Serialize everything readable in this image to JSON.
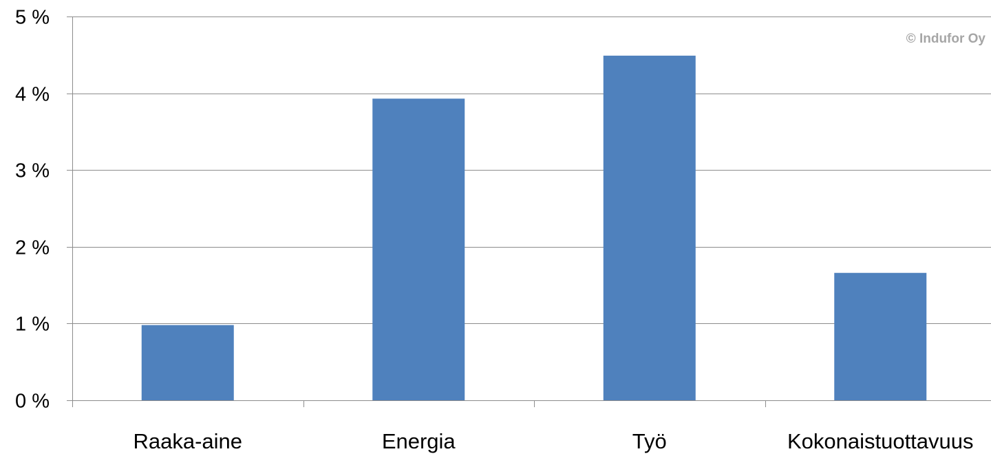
{
  "watermark": "© Indufor Oy",
  "chart_data": {
    "type": "bar",
    "categories": [
      "Raaka-aine",
      "Energia",
      "Työ",
      "Kokonaistuottavuus"
    ],
    "values": [
      0.98,
      3.93,
      4.49,
      1.66
    ],
    "y_tick_labels": [
      "0 %",
      "1 %",
      "2 %",
      "3 %",
      "4 %",
      "5 %"
    ],
    "y_ticks": [
      0,
      1,
      2,
      3,
      4,
      5
    ],
    "ylim": [
      0,
      5
    ],
    "y_unit": "%",
    "grid": true,
    "legend": "none",
    "colors": {
      "bar": "#4f81bd",
      "grid": "#8c8c8c",
      "axis": "#8c8c8c"
    }
  }
}
